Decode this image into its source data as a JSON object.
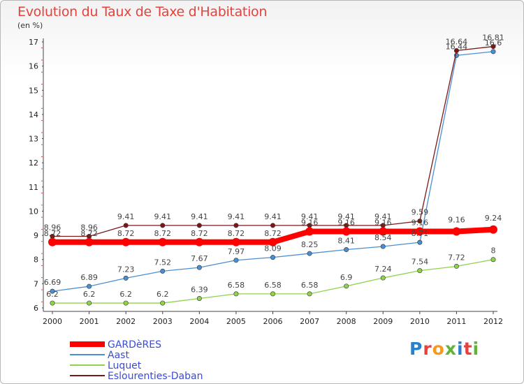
{
  "title": "Evolution du Taux de Taxe d'Habitation",
  "unit": "(en %)",
  "logo": {
    "text": "Proxiti",
    "letters": [
      "P",
      "r",
      "o",
      "x",
      "i",
      "t",
      "i"
    ],
    "colors": [
      "#2c7fc9",
      "#e8413b",
      "#f59a1c",
      "#5fb336",
      "#2c7fc9",
      "#e8413b",
      "#5fb336"
    ]
  },
  "chart_data": {
    "type": "line",
    "x": [
      "2000",
      "2001",
      "2002",
      "2003",
      "2004",
      "2005",
      "2006",
      "2007",
      "2008",
      "2009",
      "2010",
      "2011",
      "2012"
    ],
    "ylim": [
      6,
      17
    ],
    "yticks": [
      6,
      7,
      8,
      9,
      10,
      11,
      12,
      13,
      14,
      15,
      16,
      17
    ],
    "grid": false,
    "legend_position": "bottom-left",
    "series": [
      {
        "name": "GARDèRES",
        "color": "#ff0000",
        "values": [
          8.72,
          8.72,
          8.72,
          8.72,
          8.72,
          8.72,
          8.72,
          9.16,
          9.16,
          9.16,
          9.16,
          9.16,
          9.24
        ],
        "label_values": [
          null,
          null,
          null,
          null,
          null,
          null,
          null,
          null,
          null,
          null,
          null,
          "9.16",
          "9.24"
        ]
      },
      {
        "name": "Aast",
        "color": "#4a8fd4",
        "values": [
          6.69,
          6.89,
          7.23,
          7.52,
          7.67,
          7.97,
          8.09,
          8.25,
          8.41,
          8.54,
          8.71,
          16.44,
          16.6
        ],
        "label_values": [
          "6.69",
          "6.89",
          "7.23",
          "7.52",
          "7.67",
          "7.97",
          "8.09",
          "8.25",
          "8.41",
          "8.54",
          "8.71",
          "16.44",
          "16.6"
        ]
      },
      {
        "name": "Luquet",
        "color": "#8fd34a",
        "values": [
          6.2,
          6.2,
          6.2,
          6.2,
          6.39,
          6.58,
          6.58,
          6.58,
          6.9,
          7.24,
          7.54,
          7.72,
          8
        ],
        "label_values": [
          "6.2",
          "6.2",
          "6.2",
          "6.2",
          "6.39",
          "6.58",
          "6.58",
          "6.58",
          "6.9",
          "7.24",
          "7.54",
          "7.72",
          "8"
        ]
      },
      {
        "name": "Eslourenties-Daban",
        "color": "#7a1818",
        "values": [
          8.96,
          8.96,
          9.41,
          9.41,
          9.41,
          9.41,
          9.41,
          9.41,
          9.41,
          9.41,
          9.59,
          16.64,
          16.81
        ],
        "label_values": [
          "8.96",
          "8.96",
          "9.41",
          "9.41",
          "9.41",
          "9.41",
          "9.41",
          "9.41",
          "9.41",
          "9.41",
          "9.59",
          "16.64",
          "16.81"
        ]
      }
    ],
    "overlap_labels": {
      "values": [
        "8.72",
        "8.72",
        "8.72",
        "8.72",
        "8.72",
        "8.72",
        "8.72",
        "9.16",
        "9.16",
        "9.16",
        "9.16"
      ]
    }
  }
}
